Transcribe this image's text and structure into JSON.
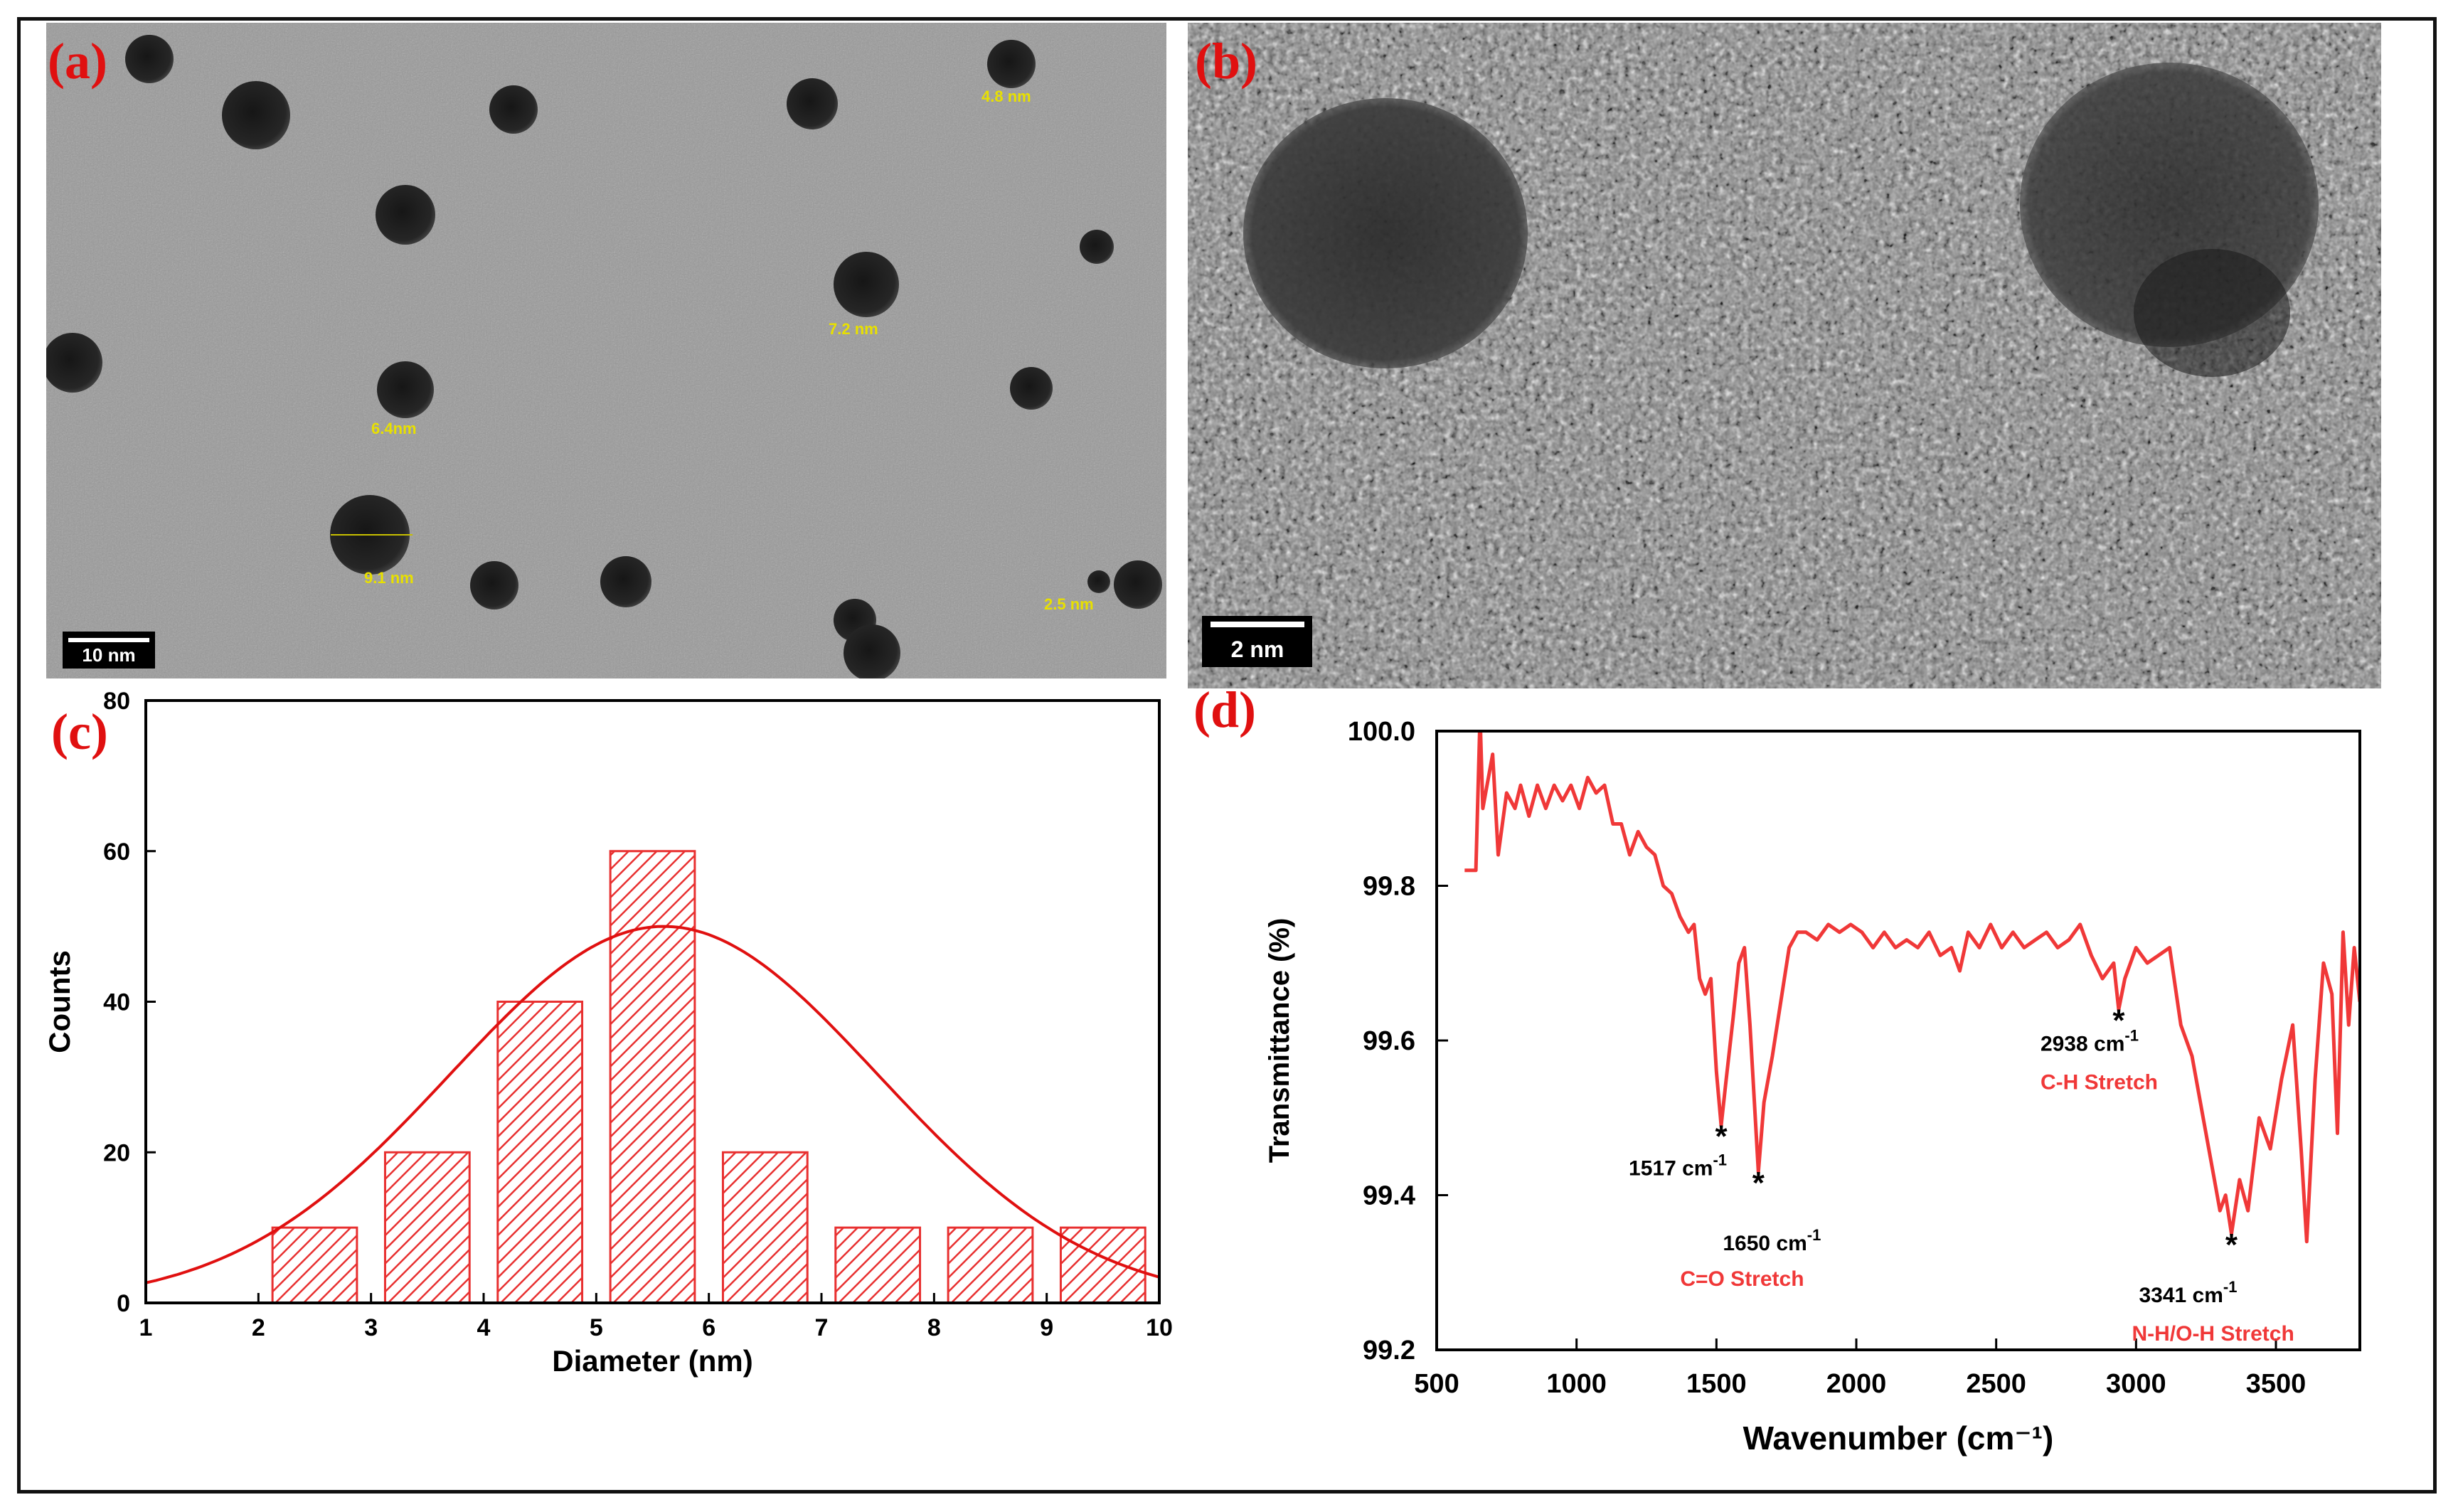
{
  "panels": {
    "a": {
      "label": "(a)",
      "scale_bar": "10 nm",
      "annotations": [
        "4.8 nm",
        "7.2 nm",
        "6.4nm",
        "9.1 nm",
        "2.5 nm"
      ]
    },
    "b": {
      "label": "(b)",
      "scale_bar": "2 nm"
    },
    "c": {
      "label": "(c)"
    },
    "d": {
      "label": "(d)"
    }
  },
  "chart_data": [
    {
      "panel": "c",
      "type": "bar",
      "title": "",
      "xlabel": "Diameter (nm)",
      "ylabel": "Counts",
      "xlim": [
        1,
        10
      ],
      "ylim": [
        0,
        80
      ],
      "xticks": [
        "1",
        "2",
        "3",
        "4",
        "5",
        "6",
        "7",
        "8",
        "9",
        "10"
      ],
      "yticks": [
        "0",
        "20",
        "40",
        "60",
        "80"
      ],
      "bars": [
        {
          "x": 2.5,
          "value": 10
        },
        {
          "x": 3.5,
          "value": 20
        },
        {
          "x": 4.5,
          "value": 40
        },
        {
          "x": 5.5,
          "value": 60
        },
        {
          "x": 6.5,
          "value": 20
        },
        {
          "x": 7.5,
          "value": 10
        },
        {
          "x": 8.5,
          "value": 10
        },
        {
          "x": 9.5,
          "value": 10
        }
      ],
      "bar_width": 0.75,
      "fit_curve": {
        "type": "gaussian",
        "peak_x": 5.6,
        "peak_y": 50,
        "sigma": 1.9
      },
      "colors": {
        "bars": "#e83030",
        "curve": "#e01010"
      }
    },
    {
      "panel": "d",
      "type": "line",
      "title": "",
      "xlabel": "Wavenumber (cm⁻¹)",
      "ylabel": "Transmittance (%)",
      "xlim": [
        500,
        3800
      ],
      "ylim": [
        99.2,
        100.0
      ],
      "xticks": [
        "500",
        "1000",
        "1500",
        "2000",
        "2500",
        "3000",
        "3500"
      ],
      "yticks": [
        "99.2",
        "99.4",
        "99.6",
        "99.8",
        "100.0"
      ],
      "series": [
        {
          "x": [
            600,
            640,
            655,
            665,
            680,
            700,
            720,
            750,
            780,
            800,
            830,
            860,
            890,
            920,
            950,
            980,
            1010,
            1040,
            1070,
            1100,
            1130,
            1160,
            1190,
            1220,
            1250,
            1280,
            1310,
            1340,
            1370,
            1400,
            1420,
            1440,
            1460,
            1480,
            1500,
            1517,
            1535,
            1560,
            1580,
            1600,
            1620,
            1650,
            1670,
            1700,
            1730,
            1760,
            1790,
            1820,
            1860,
            1900,
            1940,
            1980,
            2020,
            2060,
            2100,
            2140,
            2180,
            2220,
            2260,
            2300,
            2340,
            2370,
            2400,
            2440,
            2480,
            2520,
            2560,
            2600,
            2640,
            2680,
            2720,
            2760,
            2800,
            2840,
            2880,
            2920,
            2938,
            2960,
            3000,
            3040,
            3080,
            3120,
            3160,
            3200,
            3240,
            3260,
            3280,
            3300,
            3320,
            3341,
            3370,
            3400,
            3440,
            3480,
            3520,
            3560,
            3590,
            3610,
            3640,
            3670,
            3700,
            3720,
            3740,
            3760,
            3780,
            3800
          ],
          "y": [
            99.82,
            99.82,
            100.02,
            99.9,
            99.93,
            99.97,
            99.84,
            99.92,
            99.9,
            99.93,
            99.89,
            99.93,
            99.9,
            99.93,
            99.91,
            99.93,
            99.9,
            99.94,
            99.92,
            99.93,
            99.88,
            99.88,
            99.84,
            99.87,
            99.85,
            99.84,
            99.8,
            99.79,
            99.76,
            99.74,
            99.75,
            99.68,
            99.66,
            99.68,
            99.56,
            99.49,
            99.55,
            99.63,
            99.7,
            99.72,
            99.62,
            99.43,
            99.52,
            99.58,
            99.65,
            99.72,
            99.74,
            99.74,
            99.73,
            99.75,
            99.74,
            99.75,
            99.74,
            99.72,
            99.74,
            99.72,
            99.73,
            99.72,
            99.74,
            99.71,
            99.72,
            99.69,
            99.74,
            99.72,
            99.75,
            99.72,
            99.74,
            99.72,
            99.73,
            99.74,
            99.72,
            99.73,
            99.75,
            99.71,
            99.68,
            99.7,
            99.64,
            99.68,
            99.72,
            99.7,
            99.71,
            99.72,
            99.62,
            99.58,
            99.5,
            99.46,
            99.42,
            99.38,
            99.4,
            99.35,
            99.42,
            99.38,
            99.5,
            99.46,
            99.55,
            99.62,
            99.46,
            99.34,
            99.55,
            99.7,
            99.66,
            99.48,
            99.74,
            99.62,
            99.72,
            99.65
          ],
          "color": "#f03838"
        }
      ],
      "annotations": [
        {
          "text": "1517 cm",
          "sup": "-1",
          "x": 1517,
          "y": 99.49
        },
        {
          "text": "1650 cm",
          "sup": "-1",
          "x": 1650,
          "y": 99.43
        },
        {
          "text": "2938 cm",
          "sup": "-1",
          "x": 2938,
          "y": 99.64
        },
        {
          "text": "3341 cm",
          "sup": "-1",
          "x": 3341,
          "y": 99.35
        }
      ],
      "band_labels": [
        {
          "text": "C=O Stretch"
        },
        {
          "text": "C-H Stretch"
        },
        {
          "text": "N-H/O-H Stretch"
        }
      ]
    }
  ]
}
